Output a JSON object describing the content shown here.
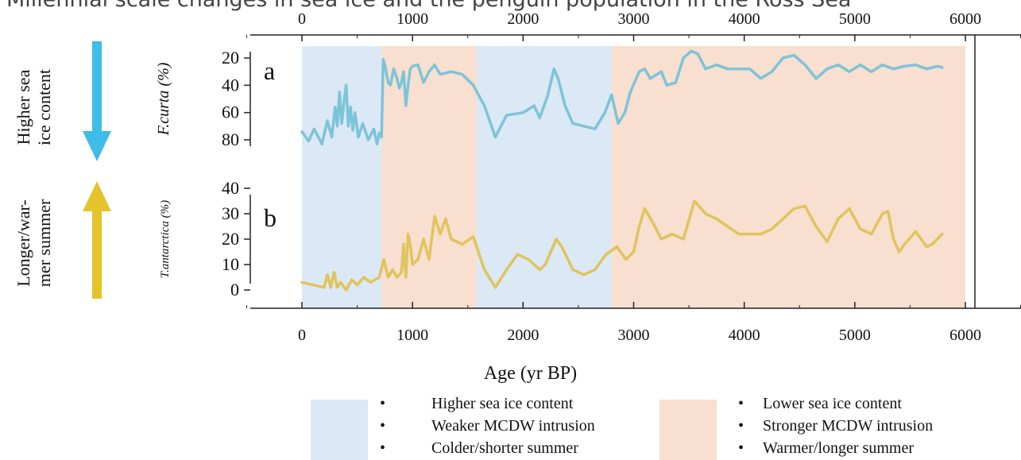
{
  "title": "Millennial scale changes in sea ice and the penguin population in the Ross Sea",
  "left_labels": {
    "top_line1": "Higher sea",
    "top_line2": "ice content",
    "bottom_line1": "Longer/war-",
    "bottom_line2": "mer summer"
  },
  "colors": {
    "blue_band": "#dbe8f5",
    "orange_band": "#f8dfd0",
    "blue_arrow": "#3dbde8",
    "yellow_arrow": "#e4c42a",
    "line_a": "#7dc4d8",
    "line_b": "#e0c45c",
    "axis": "#222222"
  },
  "legend": {
    "blue": [
      "Higher sea ice content",
      "Weaker MCDW intrusion",
      "Colder/shorter summer"
    ],
    "orange": [
      "Lower sea ice content",
      "Stronger MCDW intrusion",
      "Warmer/longer summer"
    ]
  },
  "chart_data": {
    "type": "line",
    "x_ticks": [
      0,
      1000,
      2000,
      3000,
      4000,
      5000,
      6000
    ],
    "xlabel": "Age (yr BP)",
    "xlim": [
      -450,
      6550
    ],
    "bands": [
      {
        "from": 0,
        "to": 720,
        "color": "blue"
      },
      {
        "from": 720,
        "to": 1580,
        "color": "orange"
      },
      {
        "from": 1580,
        "to": 2800,
        "color": "blue"
      },
      {
        "from": 2800,
        "to": 6000,
        "color": "orange"
      }
    ],
    "panels": [
      {
        "id": "a",
        "ylabel": "F.curta (%)",
        "ylim": [
          85,
          15
        ],
        "inverted": true,
        "y_ticks": [
          20,
          40,
          60,
          80
        ],
        "series": {
          "x": [
            0,
            60,
            110,
            180,
            230,
            270,
            300,
            320,
            340,
            360,
            380,
            400,
            420,
            440,
            460,
            480,
            510,
            550,
            600,
            650,
            680,
            700,
            720,
            735,
            750,
            780,
            800,
            830,
            860,
            880,
            900,
            920,
            940,
            960,
            980,
            1000,
            1050,
            1100,
            1150,
            1200,
            1250,
            1350,
            1450,
            1550,
            1650,
            1750,
            1850,
            2000,
            2100,
            2150,
            2220,
            2280,
            2320,
            2380,
            2450,
            2550,
            2650,
            2740,
            2800,
            2860,
            2920,
            2970,
            3050,
            3100,
            3150,
            3250,
            3300,
            3380,
            3450,
            3520,
            3580,
            3650,
            3750,
            3850,
            3950,
            4050,
            4150,
            4250,
            4350,
            4450,
            4550,
            4650,
            4750,
            4850,
            4950,
            5050,
            5150,
            5250,
            5350,
            5450,
            5550,
            5650,
            5750,
            5790
          ],
          "y": [
            74,
            81,
            72,
            83,
            66,
            78,
            56,
            70,
            45,
            68,
            52,
            40,
            70,
            56,
            73,
            60,
            78,
            68,
            80,
            72,
            83,
            75,
            78,
            21,
            25,
            38,
            40,
            28,
            35,
            42,
            38,
            30,
            55,
            40,
            28,
            26,
            25,
            38,
            30,
            25,
            32,
            30,
            32,
            40,
            55,
            78,
            62,
            60,
            55,
            64,
            48,
            28,
            36,
            55,
            68,
            70,
            72,
            60,
            47,
            68,
            60,
            45,
            30,
            28,
            35,
            30,
            40,
            38,
            20,
            15,
            17,
            28,
            25,
            28,
            28,
            28,
            35,
            30,
            20,
            18,
            25,
            35,
            28,
            25,
            30,
            25,
            30,
            25,
            28,
            26,
            25,
            28,
            26,
            27
          ]
        }
      },
      {
        "id": "b",
        "ylabel": "T.antarctica (%)",
        "ylim": [
          -5,
          40
        ],
        "inverted": false,
        "y_ticks": [
          0,
          10,
          20,
          30,
          40
        ],
        "series": {
          "x": [
            0,
            100,
            200,
            230,
            260,
            290,
            320,
            350,
            400,
            450,
            500,
            560,
            620,
            700,
            740,
            780,
            820,
            860,
            900,
            920,
            940,
            960,
            980,
            1000,
            1050,
            1100,
            1150,
            1200,
            1250,
            1300,
            1350,
            1450,
            1550,
            1650,
            1750,
            1850,
            1950,
            2050,
            2150,
            2200,
            2300,
            2350,
            2450,
            2550,
            2650,
            2750,
            2850,
            2930,
            3000,
            3050,
            3100,
            3180,
            3250,
            3350,
            3450,
            3550,
            3650,
            3750,
            3850,
            3950,
            4050,
            4150,
            4250,
            4350,
            4450,
            4550,
            4650,
            4750,
            4850,
            4950,
            5050,
            5150,
            5250,
            5300,
            5350,
            5400,
            5450,
            5550,
            5650,
            5700,
            5790
          ],
          "y": [
            3,
            2,
            1,
            6,
            1,
            7,
            1,
            3,
            0,
            4,
            2,
            5,
            3,
            5,
            12,
            5,
            8,
            5,
            7,
            18,
            5,
            22,
            18,
            10,
            12,
            20,
            12,
            29,
            22,
            28,
            20,
            18,
            21,
            8,
            1,
            8,
            14,
            12,
            8,
            10,
            20,
            17,
            8,
            6,
            8,
            14,
            17,
            12,
            15,
            25,
            32,
            26,
            20,
            22,
            20,
            35,
            30,
            28,
            25,
            22,
            22,
            22,
            24,
            28,
            32,
            33,
            25,
            19,
            28,
            32,
            24,
            22,
            30,
            31,
            20,
            15,
            18,
            23,
            17,
            18,
            22
          ]
        }
      }
    ]
  }
}
